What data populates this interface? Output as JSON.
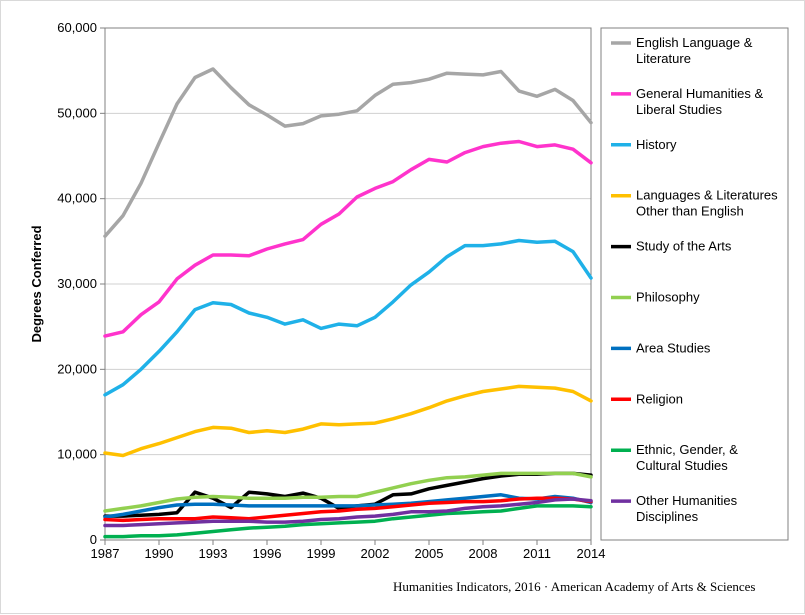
{
  "chart_data": {
    "type": "line",
    "ylabel": "Degrees Conferred",
    "xlabel": "",
    "ylim": [
      0,
      60000
    ],
    "xlim": [
      1987,
      2014
    ],
    "yticks": [
      0,
      10000,
      20000,
      30000,
      40000,
      50000,
      60000
    ],
    "ytick_labels": [
      "0",
      "10,000",
      "20,000",
      "30,000",
      "40,000",
      "50,000",
      "60,000"
    ],
    "xticks": [
      1987,
      1990,
      1993,
      1996,
      1999,
      2002,
      2005,
      2008,
      2011,
      2014
    ],
    "xtick_labels": [
      "1987",
      "1990",
      "1993",
      "1996",
      "1999",
      "2002",
      "2005",
      "2008",
      "2011",
      "2014"
    ],
    "grid": "horizontal",
    "legend_position": "right",
    "x": [
      1987,
      1988,
      1989,
      1990,
      1991,
      1992,
      1993,
      1994,
      1995,
      1996,
      1997,
      1998,
      1999,
      2000,
      2001,
      2002,
      2003,
      2004,
      2005,
      2006,
      2007,
      2008,
      2009,
      2010,
      2011,
      2012,
      2013,
      2014
    ],
    "series": [
      {
        "name": "English Language & Literature",
        "name_lines": [
          "English Language &",
          "Literature"
        ],
        "color": "#a6a6a6",
        "values": [
          35600,
          38000,
          41800,
          46500,
          51100,
          54200,
          55200,
          53000,
          51000,
          49800,
          48500,
          48800,
          49700,
          49900,
          50300,
          52100,
          53400,
          53600,
          54000,
          54700,
          54600,
          54500,
          54900,
          52600,
          52000,
          52800,
          51500,
          48900
        ]
      },
      {
        "name": "General Humanities & Liberal Studies",
        "name_lines": [
          "General Humanities &",
          "Liberal Studies"
        ],
        "color": "#ff33cc",
        "values": [
          23900,
          24400,
          26400,
          27900,
          30600,
          32200,
          33400,
          33400,
          33300,
          34100,
          34700,
          35200,
          37000,
          38200,
          40200,
          41200,
          42000,
          43400,
          44600,
          44300,
          45400,
          46100,
          46500,
          46700,
          46100,
          46300,
          45800,
          44200
        ]
      },
      {
        "name": "History",
        "name_lines": [
          "History"
        ],
        "color": "#1fb1e8",
        "values": [
          17000,
          18200,
          20000,
          22100,
          24400,
          27000,
          27800,
          27600,
          26600,
          26100,
          25300,
          25800,
          24800,
          25300,
          25100,
          26100,
          27900,
          29900,
          31400,
          33200,
          34500,
          34500,
          34700,
          35100,
          34900,
          35000,
          33800,
          30700
        ]
      },
      {
        "name": "Languages & Literatures Other than English",
        "name_lines": [
          "Languages & Literatures",
          "Other than English"
        ],
        "color": "#ffc000",
        "values": [
          10200,
          9900,
          10700,
          11300,
          12000,
          12700,
          13200,
          13100,
          12600,
          12800,
          12600,
          13000,
          13600,
          13500,
          13600,
          13700,
          14200,
          14800,
          15500,
          16300,
          16900,
          17400,
          17700,
          18000,
          17900,
          17800,
          17400,
          16300
        ]
      },
      {
        "name": "Study of the Arts",
        "name_lines": [
          "Study of the Arts"
        ],
        "color": "#000000",
        "values": [
          2800,
          2800,
          2900,
          3000,
          3200,
          5600,
          4900,
          3800,
          5600,
          5400,
          5100,
          5500,
          4900,
          3700,
          4000,
          4200,
          5300,
          5400,
          6000,
          6400,
          6800,
          7200,
          7500,
          7700,
          7700,
          7800,
          7800,
          7600
        ]
      },
      {
        "name": "Philosophy",
        "name_lines": [
          "Philosophy"
        ],
        "color": "#92d050",
        "values": [
          3400,
          3700,
          4000,
          4400,
          4800,
          5000,
          5100,
          5000,
          4900,
          4900,
          4900,
          5000,
          5000,
          5100,
          5100,
          5600,
          6100,
          6600,
          7000,
          7300,
          7400,
          7600,
          7800,
          7800,
          7800,
          7800,
          7800,
          7400
        ]
      },
      {
        "name": "Area Studies",
        "name_lines": [
          "Area Studies"
        ],
        "color": "#0070c0",
        "values": [
          2700,
          3000,
          3400,
          3800,
          4100,
          4200,
          4200,
          4100,
          4000,
          4000,
          4000,
          4000,
          4000,
          4000,
          4000,
          4100,
          4200,
          4300,
          4500,
          4700,
          4900,
          5100,
          5300,
          4900,
          4800,
          5100,
          4900,
          4400
        ]
      },
      {
        "name": "Religion",
        "name_lines": [
          "Religion"
        ],
        "color": "#ff0000",
        "values": [
          2400,
          2300,
          2400,
          2500,
          2500,
          2500,
          2700,
          2600,
          2500,
          2700,
          2900,
          3100,
          3300,
          3400,
          3600,
          3700,
          3900,
          4100,
          4300,
          4400,
          4500,
          4500,
          4600,
          4800,
          4900,
          4900,
          4800,
          4500
        ]
      },
      {
        "name": "Ethnic, Gender, & Cultural Studies",
        "name_lines": [
          "Ethnic, Gender, &",
          "Cultural Studies"
        ],
        "color": "#00b050",
        "values": [
          400,
          400,
          500,
          500,
          600,
          800,
          1000,
          1200,
          1400,
          1500,
          1600,
          1800,
          1900,
          2000,
          2100,
          2200,
          2500,
          2700,
          2900,
          3100,
          3200,
          3300,
          3400,
          3700,
          4000,
          4000,
          4000,
          3900
        ]
      },
      {
        "name": "Other Humanities Disciplines",
        "name_lines": [
          "Other Humanities",
          "Disciplines"
        ],
        "color": "#7030a0",
        "values": [
          1700,
          1700,
          1800,
          1900,
          2000,
          2100,
          2200,
          2200,
          2200,
          2100,
          2100,
          2200,
          2400,
          2500,
          2700,
          2800,
          3000,
          3300,
          3300,
          3400,
          3700,
          3900,
          4000,
          4200,
          4400,
          4700,
          4800,
          4600
        ]
      }
    ]
  },
  "credit": "Humanities Indicators, 2016 · American Academy of Arts & Sciences"
}
